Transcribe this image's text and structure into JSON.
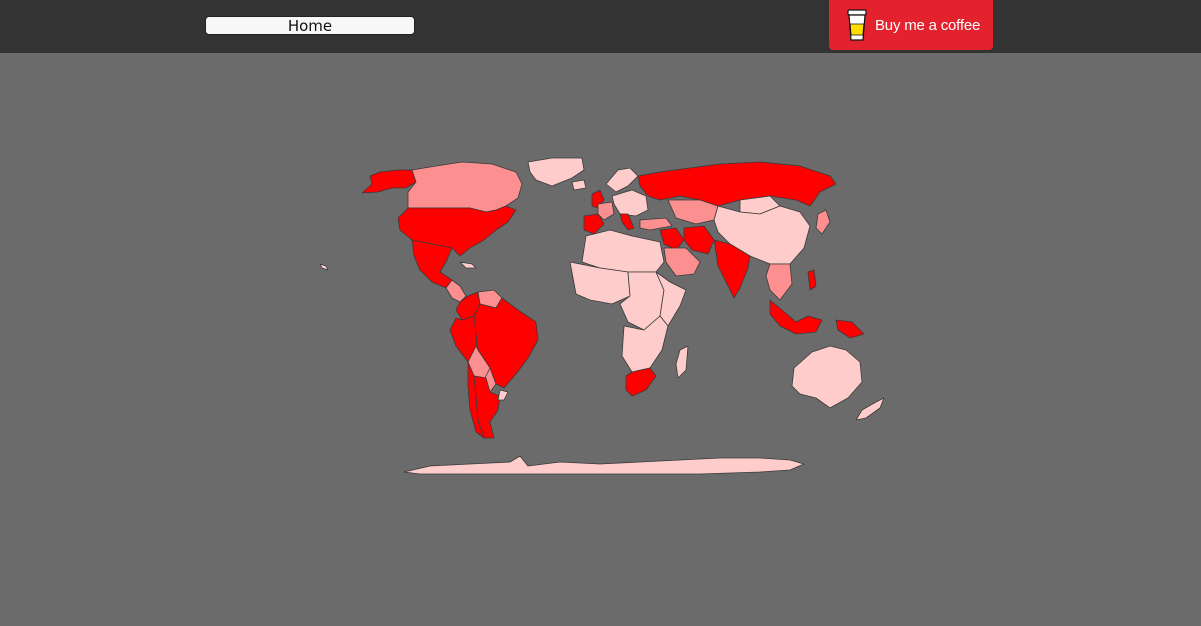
{
  "header": {
    "home_label": "Home",
    "coffee_label": "Buy me a coffee",
    "coffee_icon": "coffee-cup-icon"
  },
  "map": {
    "colors": {
      "background": "#6b6b6b",
      "level_high": "#ff0000",
      "level_mid": "#fc9090",
      "level_low": "#ffcccc",
      "border": "#3a3a3a"
    },
    "countries": [
      {
        "name": "usa",
        "level": "high"
      },
      {
        "name": "alaska",
        "level": "high"
      },
      {
        "name": "canada",
        "level": "mid"
      },
      {
        "name": "greenland",
        "level": "low"
      },
      {
        "name": "mexico",
        "level": "high"
      },
      {
        "name": "central-america",
        "level": "mid"
      },
      {
        "name": "colombia",
        "level": "high"
      },
      {
        "name": "venezuela",
        "level": "mid"
      },
      {
        "name": "brazil",
        "level": "high"
      },
      {
        "name": "peru",
        "level": "high"
      },
      {
        "name": "bolivia",
        "level": "mid"
      },
      {
        "name": "paraguay",
        "level": "mid"
      },
      {
        "name": "chile",
        "level": "high"
      },
      {
        "name": "argentina",
        "level": "high"
      },
      {
        "name": "uruguay",
        "level": "low"
      },
      {
        "name": "iceland",
        "level": "low"
      },
      {
        "name": "uk",
        "level": "high"
      },
      {
        "name": "iberia",
        "level": "high"
      },
      {
        "name": "france",
        "level": "mid"
      },
      {
        "name": "central-europe",
        "level": "low"
      },
      {
        "name": "scandinavia",
        "level": "low"
      },
      {
        "name": "italy",
        "level": "high"
      },
      {
        "name": "turkey",
        "level": "mid"
      },
      {
        "name": "russia",
        "level": "high"
      },
      {
        "name": "kazakhstan",
        "level": "mid"
      },
      {
        "name": "china",
        "level": "low"
      },
      {
        "name": "mongolia",
        "level": "low"
      },
      {
        "name": "middle-east",
        "level": "high"
      },
      {
        "name": "saudi-arabia",
        "level": "mid"
      },
      {
        "name": "iran",
        "level": "high"
      },
      {
        "name": "india",
        "level": "high"
      },
      {
        "name": "southeast-asia",
        "level": "mid"
      },
      {
        "name": "japan",
        "level": "mid"
      },
      {
        "name": "indonesia",
        "level": "high"
      },
      {
        "name": "philippines",
        "level": "high"
      },
      {
        "name": "north-africa",
        "level": "low"
      },
      {
        "name": "west-africa",
        "level": "low"
      },
      {
        "name": "central-africa",
        "level": "low"
      },
      {
        "name": "east-africa",
        "level": "low"
      },
      {
        "name": "southern-africa",
        "level": "low"
      },
      {
        "name": "south-africa",
        "level": "high"
      },
      {
        "name": "madagascar",
        "level": "low"
      },
      {
        "name": "australia",
        "level": "low"
      },
      {
        "name": "new-zealand",
        "level": "low"
      },
      {
        "name": "papua-new-guinea",
        "level": "high"
      },
      {
        "name": "antarctica",
        "level": "low"
      }
    ]
  }
}
